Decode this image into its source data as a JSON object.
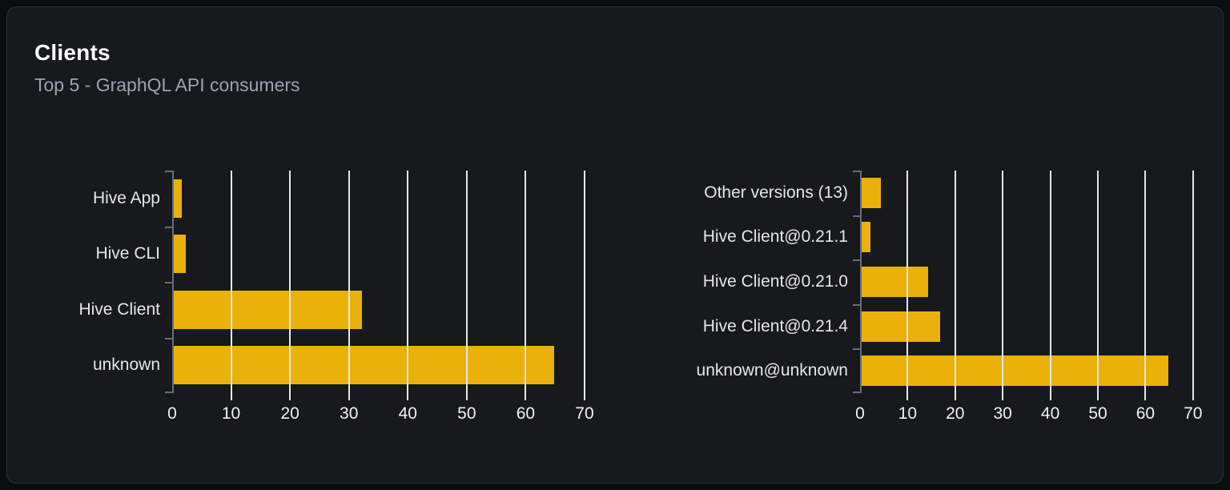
{
  "card": {
    "title": "Clients",
    "subtitle": "Top 5 - GraphQL API consumers"
  },
  "colors": {
    "page_bg": "#0b0c0e",
    "card_bg": "#17191d",
    "card_border": "#2b2e33",
    "title": "#ffffff",
    "subtitle": "#9ca3af",
    "label": "#e5e7eb",
    "tick_label": "#f1f2f4",
    "gridline": "#e4e7eb",
    "axis": "#676d76",
    "bar": "#e9b10a"
  },
  "chart_data": [
    {
      "type": "bar",
      "orientation": "horizontal",
      "name": "clients-by-name",
      "categories": [
        "Hive App",
        "Hive CLI",
        "Hive Client",
        "unknown"
      ],
      "values": [
        1.4,
        2.1,
        32,
        64.5
      ],
      "x_ticks": [
        0,
        10,
        20,
        30,
        40,
        50,
        60,
        70
      ],
      "xlim": [
        0,
        70
      ],
      "xlabel": "",
      "ylabel": "",
      "grid": true,
      "legend": false,
      "bar_color": "#e9b10a"
    },
    {
      "type": "bar",
      "orientation": "horizontal",
      "name": "clients-by-version",
      "categories": [
        "Other versions (13)",
        "Hive Client@0.21.1",
        "Hive Client@0.21.0",
        "Hive Client@0.21.4",
        "unknown@unknown"
      ],
      "values": [
        4,
        1.9,
        13.9,
        16.5,
        64.5
      ],
      "x_ticks": [
        0,
        10,
        20,
        30,
        40,
        50,
        60,
        70
      ],
      "xlim": [
        0,
        70
      ],
      "xlabel": "",
      "ylabel": "",
      "grid": true,
      "legend": false,
      "bar_color": "#e9b10a"
    }
  ]
}
